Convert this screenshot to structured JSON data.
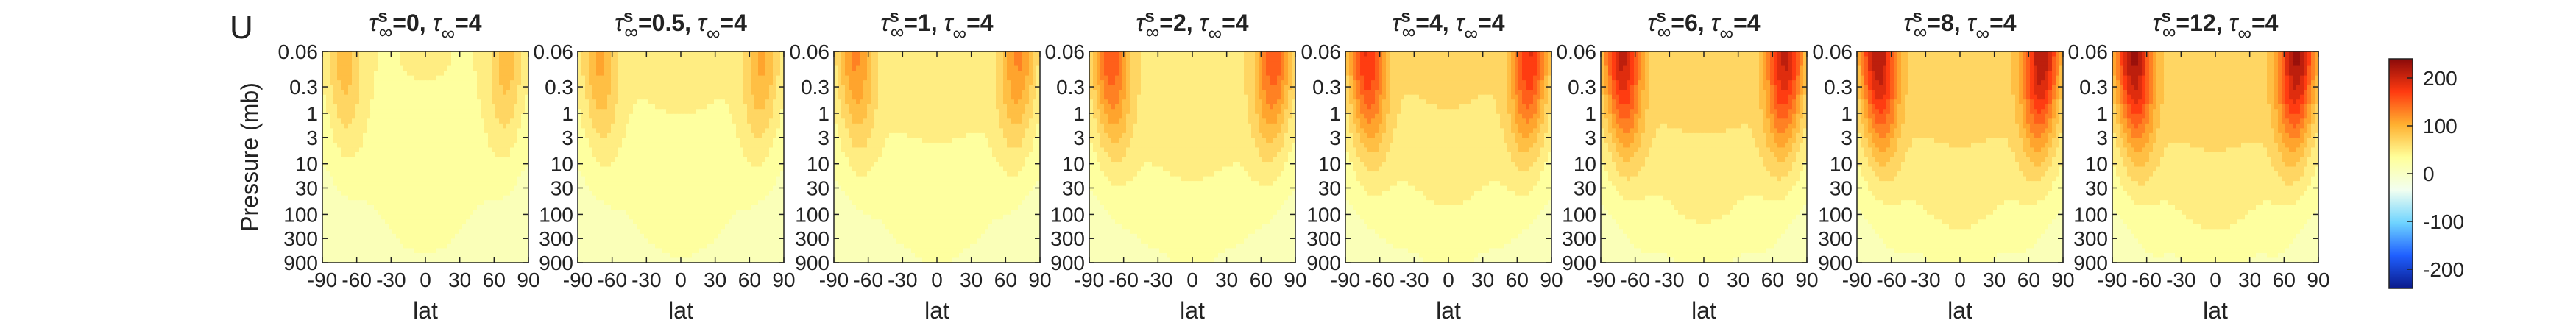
{
  "figure": {
    "panel_letter": "U"
  },
  "chart_data": [
    {
      "type": "heatmap",
      "title_parts": {
        "sym": "τ",
        "sup": "s",
        "sub": "∞",
        "s_value": "0",
        "tau_value": "4"
      },
      "xlabel": "lat",
      "ylabel": "Pressure (mb)",
      "x_ticks": [
        -90,
        -60,
        -30,
        0,
        30,
        60,
        90
      ],
      "y_ticks": [
        "0.06",
        "0.3",
        "1",
        "3",
        "10",
        "30",
        "100",
        "300",
        "900"
      ],
      "y_scale": "log",
      "xlim": [
        -90,
        90
      ],
      "ylim_mb": [
        900,
        0.06
      ],
      "jet_peak_ms": 60
    },
    {
      "type": "heatmap",
      "title_parts": {
        "sym": "τ",
        "sup": "s",
        "sub": "∞",
        "s_value": "0.5",
        "tau_value": "4"
      },
      "xlabel": "lat",
      "ylabel": "",
      "x_ticks": [
        -90,
        -60,
        -30,
        0,
        30,
        60,
        90
      ],
      "y_ticks": [
        "0.06",
        "0.3",
        "1",
        "3",
        "10",
        "30",
        "100",
        "300",
        "900"
      ],
      "y_scale": "log",
      "xlim": [
        -90,
        90
      ],
      "ylim_mb": [
        900,
        0.06
      ],
      "jet_peak_ms": 70
    },
    {
      "type": "heatmap",
      "title_parts": {
        "sym": "τ",
        "sup": "s",
        "sub": "∞",
        "s_value": "1",
        "tau_value": "4"
      },
      "xlabel": "lat",
      "ylabel": "",
      "x_ticks": [
        -90,
        -60,
        -30,
        0,
        30,
        60,
        90
      ],
      "y_ticks": [
        "0.06",
        "0.3",
        "1",
        "3",
        "10",
        "30",
        "100",
        "300",
        "900"
      ],
      "y_scale": "log",
      "xlim": [
        -90,
        90
      ],
      "ylim_mb": [
        900,
        0.06
      ],
      "jet_peak_ms": 85
    },
    {
      "type": "heatmap",
      "title_parts": {
        "sym": "τ",
        "sup": "s",
        "sub": "∞",
        "s_value": "2",
        "tau_value": "4"
      },
      "xlabel": "lat",
      "ylabel": "",
      "x_ticks": [
        -90,
        -60,
        -30,
        0,
        30,
        60,
        90
      ],
      "y_ticks": [
        "0.06",
        "0.3",
        "1",
        "3",
        "10",
        "30",
        "100",
        "300",
        "900"
      ],
      "y_scale": "log",
      "xlim": [
        -90,
        90
      ],
      "ylim_mb": [
        900,
        0.06
      ],
      "jet_peak_ms": 110
    },
    {
      "type": "heatmap",
      "title_parts": {
        "sym": "τ",
        "sup": "s",
        "sub": "∞",
        "s_value": "4",
        "tau_value": "4"
      },
      "xlabel": "lat",
      "ylabel": "",
      "x_ticks": [
        -90,
        -60,
        -30,
        0,
        30,
        60,
        90
      ],
      "y_ticks": [
        "0.06",
        "0.3",
        "1",
        "3",
        "10",
        "30",
        "100",
        "300",
        "900"
      ],
      "y_scale": "log",
      "xlim": [
        -90,
        90
      ],
      "ylim_mb": [
        900,
        0.06
      ],
      "jet_peak_ms": 130
    },
    {
      "type": "heatmap",
      "title_parts": {
        "sym": "τ",
        "sup": "s",
        "sub": "∞",
        "s_value": "6",
        "tau_value": "4"
      },
      "xlabel": "lat",
      "ylabel": "",
      "x_ticks": [
        -90,
        -60,
        -30,
        0,
        30,
        60,
        90
      ],
      "y_ticks": [
        "0.06",
        "0.3",
        "1",
        "3",
        "10",
        "30",
        "100",
        "300",
        "900"
      ],
      "y_scale": "log",
      "xlim": [
        -90,
        90
      ],
      "ylim_mb": [
        900,
        0.06
      ],
      "jet_peak_ms": 150
    },
    {
      "type": "heatmap",
      "title_parts": {
        "sym": "τ",
        "sup": "s",
        "sub": "∞",
        "s_value": "8",
        "tau_value": "4"
      },
      "xlabel": "lat",
      "ylabel": "",
      "x_ticks": [
        -90,
        -60,
        -30,
        0,
        30,
        60,
        90
      ],
      "y_ticks": [
        "0.06",
        "0.3",
        "1",
        "3",
        "10",
        "30",
        "100",
        "300",
        "900"
      ],
      "y_scale": "log",
      "xlim": [
        -90,
        90
      ],
      "ylim_mb": [
        900,
        0.06
      ],
      "jet_peak_ms": 160
    },
    {
      "type": "heatmap",
      "title_parts": {
        "sym": "τ",
        "sup": "s",
        "sub": "∞",
        "s_value": "12",
        "tau_value": "4"
      },
      "xlabel": "lat",
      "ylabel": "",
      "x_ticks": [
        -90,
        -60,
        -30,
        0,
        30,
        60,
        90
      ],
      "y_ticks": [
        "0.06",
        "0.3",
        "1",
        "3",
        "10",
        "30",
        "100",
        "300",
        "900"
      ],
      "y_scale": "log",
      "xlim": [
        -90,
        90
      ],
      "ylim_mb": [
        900,
        0.06
      ],
      "jet_peak_ms": 165
    }
  ],
  "colorbar": {
    "range": [
      -240,
      240
    ],
    "ticks": [
      "200",
      "100",
      "0",
      "-100",
      "-200"
    ],
    "tick_values": [
      200,
      100,
      0,
      -100,
      -200
    ],
    "colors": [
      "#0a1a8a",
      "#1f5fff",
      "#6fd4ff",
      "#f2fff0",
      "#ffff9a",
      "#ffb030",
      "#ff3a10",
      "#8a0a0a"
    ]
  }
}
